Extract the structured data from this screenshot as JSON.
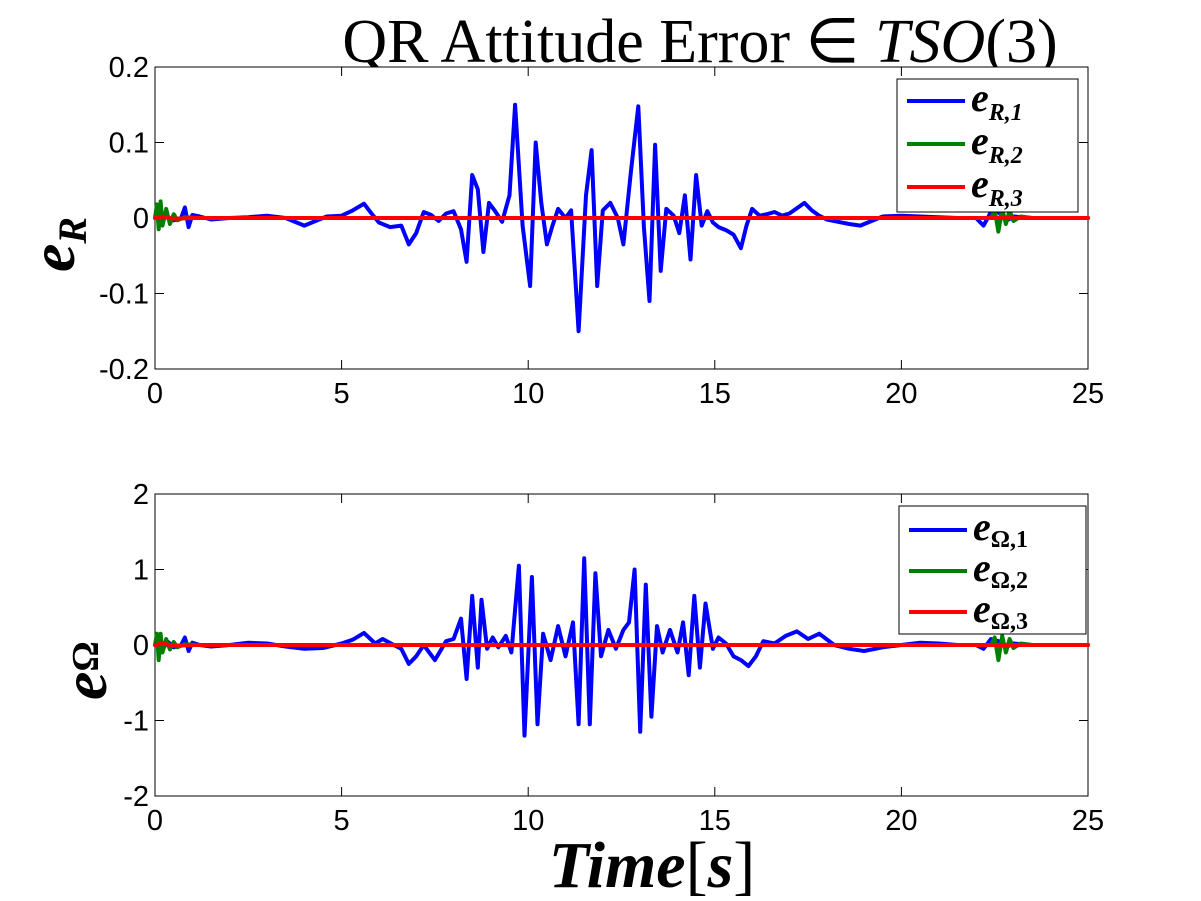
{
  "chart_data": [
    {
      "type": "line",
      "title": "QR Attitude Error ∈ TSO(3)",
      "title_parts": [
        "QR Attitude Error ∈ ",
        "TSO",
        "(3)"
      ],
      "ylabel": "e",
      "ylabel_sub": "R",
      "xlim": [
        0,
        25
      ],
      "ylim": [
        -0.2,
        0.2
      ],
      "xticks": [
        0,
        5,
        10,
        15,
        20,
        25
      ],
      "xtick_labels": [
        "0",
        "5",
        "10",
        "15",
        "20",
        "25"
      ],
      "yticks": [
        -0.2,
        -0.1,
        0,
        0.1,
        0.2
      ],
      "ytick_labels": [
        "-0.2",
        "-0.1",
        "0",
        "0.1",
        "0.2"
      ],
      "grid": false,
      "legend_position": "top-right",
      "series": [
        {
          "name": "e_R,1",
          "legend_main": "e",
          "legend_sub": "R,1",
          "color": "#0000ff",
          "x": [
            0,
            0.1,
            0.2,
            0.3,
            0.5,
            0.7,
            0.8,
            0.9,
            1.0,
            1.2,
            1.5,
            2.0,
            2.5,
            3.0,
            3.5,
            4.0,
            4.3,
            4.6,
            5.0,
            5.3,
            5.6,
            5.8,
            6.0,
            6.3,
            6.6,
            6.8,
            7.0,
            7.2,
            7.4,
            7.6,
            7.8,
            8.0,
            8.2,
            8.35,
            8.5,
            8.65,
            8.8,
            8.95,
            9.1,
            9.3,
            9.5,
            9.65,
            9.85,
            10.05,
            10.2,
            10.35,
            10.5,
            10.65,
            10.8,
            11.0,
            11.15,
            11.35,
            11.55,
            11.7,
            11.85,
            12.0,
            12.2,
            12.4,
            12.55,
            12.75,
            12.95,
            13.1,
            13.25,
            13.4,
            13.55,
            13.7,
            13.9,
            14.05,
            14.2,
            14.35,
            14.5,
            14.65,
            14.8,
            14.95,
            15.1,
            15.3,
            15.5,
            15.7,
            15.85,
            16.0,
            16.2,
            16.4,
            16.6,
            16.8,
            17.0,
            17.2,
            17.4,
            17.6,
            17.8,
            18.0,
            18.3,
            18.6,
            18.9,
            19.2,
            19.5,
            20.0,
            20.5,
            21.0,
            21.5,
            21.8,
            22.0,
            22.2,
            22.4,
            22.6,
            22.8,
            23.0,
            23.5,
            24.0,
            24.5,
            25.0
          ],
          "y": [
            0.0,
            0.003,
            -0.004,
            0.002,
            -0.003,
            0.0,
            0.014,
            -0.012,
            0.004,
            0.002,
            -0.002,
            0.0,
            0.001,
            0.003,
            0.0,
            -0.01,
            -0.004,
            0.002,
            0.003,
            0.01,
            0.019,
            0.006,
            -0.006,
            -0.012,
            -0.01,
            -0.035,
            -0.02,
            0.008,
            0.004,
            -0.004,
            0.006,
            0.009,
            -0.015,
            -0.058,
            0.057,
            0.038,
            -0.045,
            0.02,
            0.01,
            -0.005,
            0.03,
            0.15,
            -0.01,
            -0.09,
            0.1,
            0.02,
            -0.035,
            -0.01,
            0.012,
            0.0,
            0.01,
            -0.15,
            0.03,
            0.09,
            -0.09,
            0.01,
            0.02,
            0.0,
            -0.035,
            0.06,
            0.148,
            -0.012,
            -0.11,
            0.097,
            -0.07,
            0.012,
            0.003,
            -0.02,
            0.03,
            -0.055,
            0.057,
            -0.01,
            0.009,
            -0.006,
            -0.012,
            -0.016,
            -0.022,
            -0.04,
            -0.01,
            0.012,
            0.003,
            0.005,
            0.008,
            0.003,
            0.006,
            0.013,
            0.02,
            0.01,
            0.003,
            -0.002,
            -0.005,
            -0.008,
            -0.01,
            -0.004,
            0.002,
            0.003,
            0.002,
            0.001,
            0.0,
            0.0,
            0.0,
            -0.01,
            0.008,
            0.008,
            -0.004,
            0.002,
            0.0,
            0.0,
            0.0,
            0.0
          ]
        },
        {
          "name": "e_R,2",
          "legend_main": "e",
          "legend_sub": "R,2",
          "color": "#008000",
          "x": [
            0,
            0.05,
            0.1,
            0.15,
            0.2,
            0.3,
            0.4,
            0.5,
            0.6,
            0.8,
            1.2,
            2,
            5,
            10,
            15,
            20,
            22,
            22.4,
            22.5,
            22.6,
            22.7,
            22.8,
            22.9,
            23.0,
            23.2,
            23.5,
            25
          ],
          "y": [
            0.0,
            0.018,
            -0.015,
            0.022,
            -0.01,
            0.012,
            -0.008,
            0.005,
            -0.003,
            0.001,
            0.0,
            0.0,
            0.0,
            0.0,
            0.0,
            0.0,
            0.0,
            0.0,
            0.01,
            -0.018,
            0.012,
            -0.008,
            0.01,
            -0.004,
            0.002,
            0.0,
            0.0
          ]
        },
        {
          "name": "e_R,3",
          "legend_main": "e",
          "legend_sub": "R,3",
          "color": "#ff0000",
          "x": [
            0,
            0.2,
            0.5,
            1,
            25
          ],
          "y": [
            0.0,
            0.002,
            -0.001,
            0.0,
            0.0
          ]
        }
      ]
    },
    {
      "type": "line",
      "xlabel": "Time[s]",
      "xlabel_parts": [
        "Time",
        "[",
        "s",
        "]"
      ],
      "ylabel": "e",
      "ylabel_sub": "Ω",
      "xlim": [
        0,
        25
      ],
      "ylim": [
        -2,
        2
      ],
      "xticks": [
        0,
        5,
        10,
        15,
        20,
        25
      ],
      "xtick_labels": [
        "0",
        "5",
        "10",
        "15",
        "20",
        "25"
      ],
      "yticks": [
        -2,
        -1,
        0,
        1,
        2
      ],
      "ytick_labels": [
        "-2",
        "-1",
        "0",
        "1",
        "2"
      ],
      "grid": false,
      "legend_position": "top-right",
      "series": [
        {
          "name": "e_Ω,1",
          "legend_main": "e",
          "legend_sub": "Ω,1",
          "color": "#0000ff",
          "x": [
            0,
            0.1,
            0.2,
            0.35,
            0.5,
            0.7,
            0.8,
            0.9,
            1.0,
            1.2,
            1.5,
            2.0,
            2.5,
            3.0,
            3.5,
            4.0,
            4.5,
            5.0,
            5.3,
            5.6,
            5.9,
            6.1,
            6.4,
            6.6,
            6.8,
            7.0,
            7.2,
            7.5,
            7.8,
            8.0,
            8.2,
            8.35,
            8.5,
            8.65,
            8.75,
            8.9,
            9.05,
            9.2,
            9.4,
            9.55,
            9.75,
            9.9,
            10.1,
            10.25,
            10.4,
            10.6,
            10.8,
            11.0,
            11.2,
            11.35,
            11.5,
            11.65,
            11.8,
            11.95,
            12.15,
            12.35,
            12.55,
            12.7,
            12.85,
            13.0,
            13.15,
            13.3,
            13.45,
            13.6,
            13.8,
            14.0,
            14.15,
            14.3,
            14.45,
            14.6,
            14.75,
            14.95,
            15.1,
            15.3,
            15.5,
            15.7,
            15.9,
            16.1,
            16.3,
            16.6,
            16.9,
            17.2,
            17.5,
            17.8,
            18.2,
            18.6,
            19.0,
            19.5,
            20.0,
            20.5,
            21.0,
            21.5,
            21.8,
            22.0,
            22.2,
            22.4,
            22.6,
            22.8,
            23.0,
            23.5,
            24.0,
            25.0
          ],
          "y": [
            0.0,
            0.08,
            -0.05,
            0.04,
            -0.03,
            0.0,
            0.1,
            -0.08,
            0.03,
            0.0,
            -0.02,
            0.0,
            0.03,
            0.02,
            -0.02,
            -0.05,
            -0.04,
            0.02,
            0.07,
            0.16,
            0.02,
            0.08,
            0.0,
            -0.05,
            -0.25,
            -0.15,
            0.0,
            -0.2,
            0.05,
            0.08,
            0.35,
            -0.45,
            0.65,
            -0.3,
            0.6,
            -0.05,
            0.1,
            -0.03,
            0.12,
            -0.1,
            1.05,
            -1.2,
            0.9,
            -1.05,
            0.15,
            -0.2,
            0.25,
            -0.15,
            0.3,
            -1.05,
            1.15,
            -1.05,
            0.95,
            -0.15,
            0.2,
            -0.05,
            0.2,
            0.3,
            1.0,
            -1.15,
            0.8,
            -0.95,
            0.25,
            -0.1,
            0.2,
            -0.1,
            0.3,
            -0.4,
            0.65,
            -0.3,
            0.55,
            -0.05,
            0.1,
            0.02,
            -0.15,
            -0.2,
            -0.28,
            -0.15,
            0.05,
            0.02,
            0.12,
            0.18,
            0.08,
            0.15,
            0.0,
            -0.05,
            -0.08,
            -0.03,
            0.0,
            0.03,
            0.02,
            0.0,
            0.0,
            0.0,
            -0.05,
            0.08,
            0.05,
            -0.03,
            0.02,
            0.0,
            0.0,
            0.0
          ]
        },
        {
          "name": "e_Ω,2",
          "legend_main": "e",
          "legend_sub": "Ω,2",
          "color": "#008000",
          "x": [
            0,
            0.05,
            0.1,
            0.15,
            0.2,
            0.3,
            0.4,
            0.5,
            0.6,
            0.8,
            1.2,
            2,
            5,
            10,
            15,
            20,
            22,
            22.4,
            22.5,
            22.6,
            22.7,
            22.8,
            22.9,
            23.0,
            23.2,
            23.5,
            25
          ],
          "y": [
            0.0,
            0.15,
            -0.2,
            0.15,
            -0.1,
            0.08,
            -0.06,
            0.04,
            -0.03,
            0.01,
            0.0,
            0.0,
            0.0,
            0.0,
            0.0,
            0.0,
            0.0,
            0.0,
            0.1,
            -0.2,
            0.12,
            -0.1,
            0.08,
            -0.04,
            0.02,
            0.0,
            0.0
          ]
        },
        {
          "name": "e_Ω,3",
          "legend_main": "e",
          "legend_sub": "Ω,3",
          "color": "#ff0000",
          "x": [
            0,
            0.2,
            0.5,
            1,
            25
          ],
          "y": [
            0.0,
            0.02,
            -0.01,
            0.0,
            0.0
          ]
        }
      ]
    }
  ]
}
